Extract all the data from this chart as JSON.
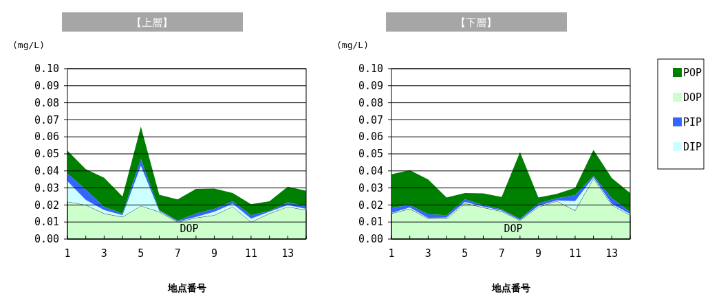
{
  "chart_data": [
    {
      "type": "area",
      "title": "【上層】",
      "xlabel": "地点番号",
      "ylabel": "(mg/L)",
      "stacked": true,
      "grid": "y",
      "x": [
        1,
        2,
        3,
        4,
        5,
        6,
        7,
        8,
        9,
        10,
        11,
        12,
        13,
        14
      ],
      "xlim": [
        1,
        14
      ],
      "xticks": [
        1,
        {
          "value": 2,
          "label": null
        },
        3,
        {
          "value": 4,
          "label": null
        },
        5,
        {
          "value": 6,
          "label": null
        },
        7,
        {
          "value": 8,
          "label": null
        },
        9,
        {
          "value": 10,
          "label": null
        },
        11,
        {
          "value": 12,
          "label": null
        },
        13,
        {
          "value": 14,
          "label": null
        }
      ],
      "ylim": [
        0,
        0.1
      ],
      "yticks": [
        {
          "value": 0,
          "label": "0.00"
        },
        {
          "value": 0.01,
          "label": "0.01"
        },
        {
          "value": 0.02,
          "label": "0.02"
        },
        {
          "value": 0.03,
          "label": "0.03"
        },
        {
          "value": 0.04,
          "label": "0.04"
        },
        {
          "value": 0.05,
          "label": "0.05"
        },
        {
          "value": 0.06,
          "label": "0.06"
        },
        {
          "value": 0.07,
          "label": "0.07"
        },
        {
          "value": 0.08,
          "label": "0.08"
        },
        {
          "value": 0.09,
          "label": "0.09"
        },
        {
          "value": 0.1,
          "label": "0.10"
        }
      ],
      "annotations": [
        "DOP"
      ],
      "series": [
        {
          "color": "#ccffcc",
          "values": [
            0.022,
            0.02,
            0.015,
            0.013,
            0.0195,
            0.016,
            0.01,
            0.0125,
            0.014,
            0.019,
            0.01,
            0.015,
            0.019,
            0.017
          ]
        },
        {
          "color": "#ccffff",
          "values": [
            0.012,
            0.003,
            0.002,
            0.001,
            0.0235,
            0.0005,
            0.0003,
            0.0005,
            0.002,
            0.0018,
            0.002,
            0.001,
            0.001,
            0.0007
          ]
        },
        {
          "color": "#3366ff",
          "values": [
            0.0045,
            0.006,
            0.002,
            0.001,
            0.004,
            0.0005,
            0.0005,
            0.002,
            0.0017,
            0.0014,
            0.002,
            0.0005,
            0.0016,
            0.0016
          ]
        },
        {
          "color": "#008000",
          "values": [
            0.0134,
            0.012,
            0.017,
            0.01,
            0.019,
            0.009,
            0.0125,
            0.0144,
            0.0119,
            0.0048,
            0.0065,
            0.0057,
            0.0091,
            0.009
          ]
        }
      ]
    },
    {
      "type": "area",
      "title": "【下層】",
      "xlabel": "地点番号",
      "ylabel": "(mg/L)",
      "stacked": true,
      "grid": "y",
      "legend": "right",
      "x": [
        1,
        2,
        3,
        4,
        5,
        6,
        7,
        8,
        9,
        10,
        11,
        12,
        13,
        14
      ],
      "xlim": [
        1,
        14
      ],
      "xticks": [
        1,
        {
          "value": 2,
          "label": null
        },
        3,
        {
          "value": 4,
          "label": null
        },
        5,
        {
          "value": 6,
          "label": null
        },
        7,
        {
          "value": 8,
          "label": null
        },
        9,
        {
          "value": 10,
          "label": null
        },
        11,
        {
          "value": 12,
          "label": null
        },
        13,
        {
          "value": 14,
          "label": null
        }
      ],
      "ylim": [
        0,
        0.1
      ],
      "yticks": [
        {
          "value": 0,
          "label": "0.00"
        },
        {
          "value": 0.01,
          "label": "0.01"
        },
        {
          "value": 0.02,
          "label": "0.02"
        },
        {
          "value": 0.03,
          "label": "0.03"
        },
        {
          "value": 0.04,
          "label": "0.04"
        },
        {
          "value": 0.05,
          "label": "0.05"
        },
        {
          "value": 0.06,
          "label": "0.06"
        },
        {
          "value": 0.07,
          "label": "0.07"
        },
        {
          "value": 0.08,
          "label": "0.08"
        },
        {
          "value": 0.09,
          "label": "0.09"
        },
        {
          "value": 0.1,
          "label": "0.10"
        }
      ],
      "annotations": [
        "DOP"
      ],
      "series": [
        {
          "name": "DOP",
          "color": "#ccffcc",
          "values": [
            0.015,
            0.0178,
            0.012,
            0.0119,
            0.021,
            0.0185,
            0.0163,
            0.0109,
            0.0188,
            0.0223,
            0.0167,
            0.0356,
            0.02,
            0.014
          ]
        },
        {
          "name": "DIP",
          "color": "#ccffff",
          "values": [
            0.0003,
            0.0007,
            0.0004,
            0.0007,
            0.0008,
            0.0006,
            0.0004,
            0.0003,
            0.0007,
            0.0004,
            0.0056,
            0.0007,
            0.0007,
            0.0007
          ]
        },
        {
          "name": "PIP",
          "color": "#3366ff",
          "values": [
            0.0031,
            0.0015,
            0.0022,
            0.0014,
            0.0016,
            0.0009,
            0.0007,
            0.0007,
            0.0015,
            0.0013,
            0.0035,
            0.0009,
            0.0033,
            0.0013
          ]
        },
        {
          "name": "POP",
          "color": "#008000",
          "values": [
            0.0196,
            0.0204,
            0.0204,
            0.0104,
            0.0036,
            0.0068,
            0.0073,
            0.0391,
            0.0034,
            0.0025,
            0.0042,
            0.0151,
            0.0118,
            0.011
          ]
        }
      ]
    }
  ]
}
